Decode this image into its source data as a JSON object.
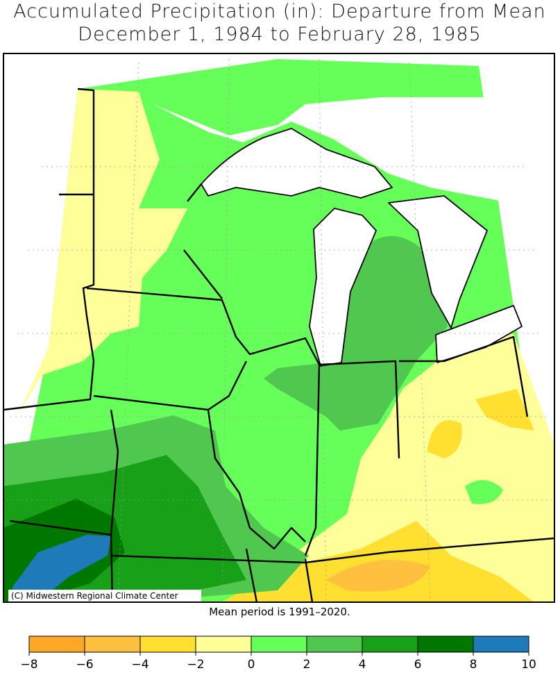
{
  "title": [
    "Accumulated Precipitation (in): Departure from Mean",
    "December 1, 1984 to February 28, 1985"
  ],
  "credit": "(C) Midwestern Regional Climate Center",
  "note": "Mean period is 1991–2020.",
  "legend": {
    "bins": [
      {
        "value": -8,
        "label": "−8"
      },
      {
        "value": -6,
        "label": "−6"
      },
      {
        "value": -4,
        "label": "−4"
      },
      {
        "value": -2,
        "label": "−2"
      },
      0,
      2,
      4,
      6,
      8,
      10
    ],
    "colors": [
      "#ffa726",
      "#ffc040",
      "#ffe030",
      "#ffff99",
      "#66ff5a",
      "#50c850",
      "#18a018",
      "#007800",
      "#1e7ab8"
    ]
  }
}
